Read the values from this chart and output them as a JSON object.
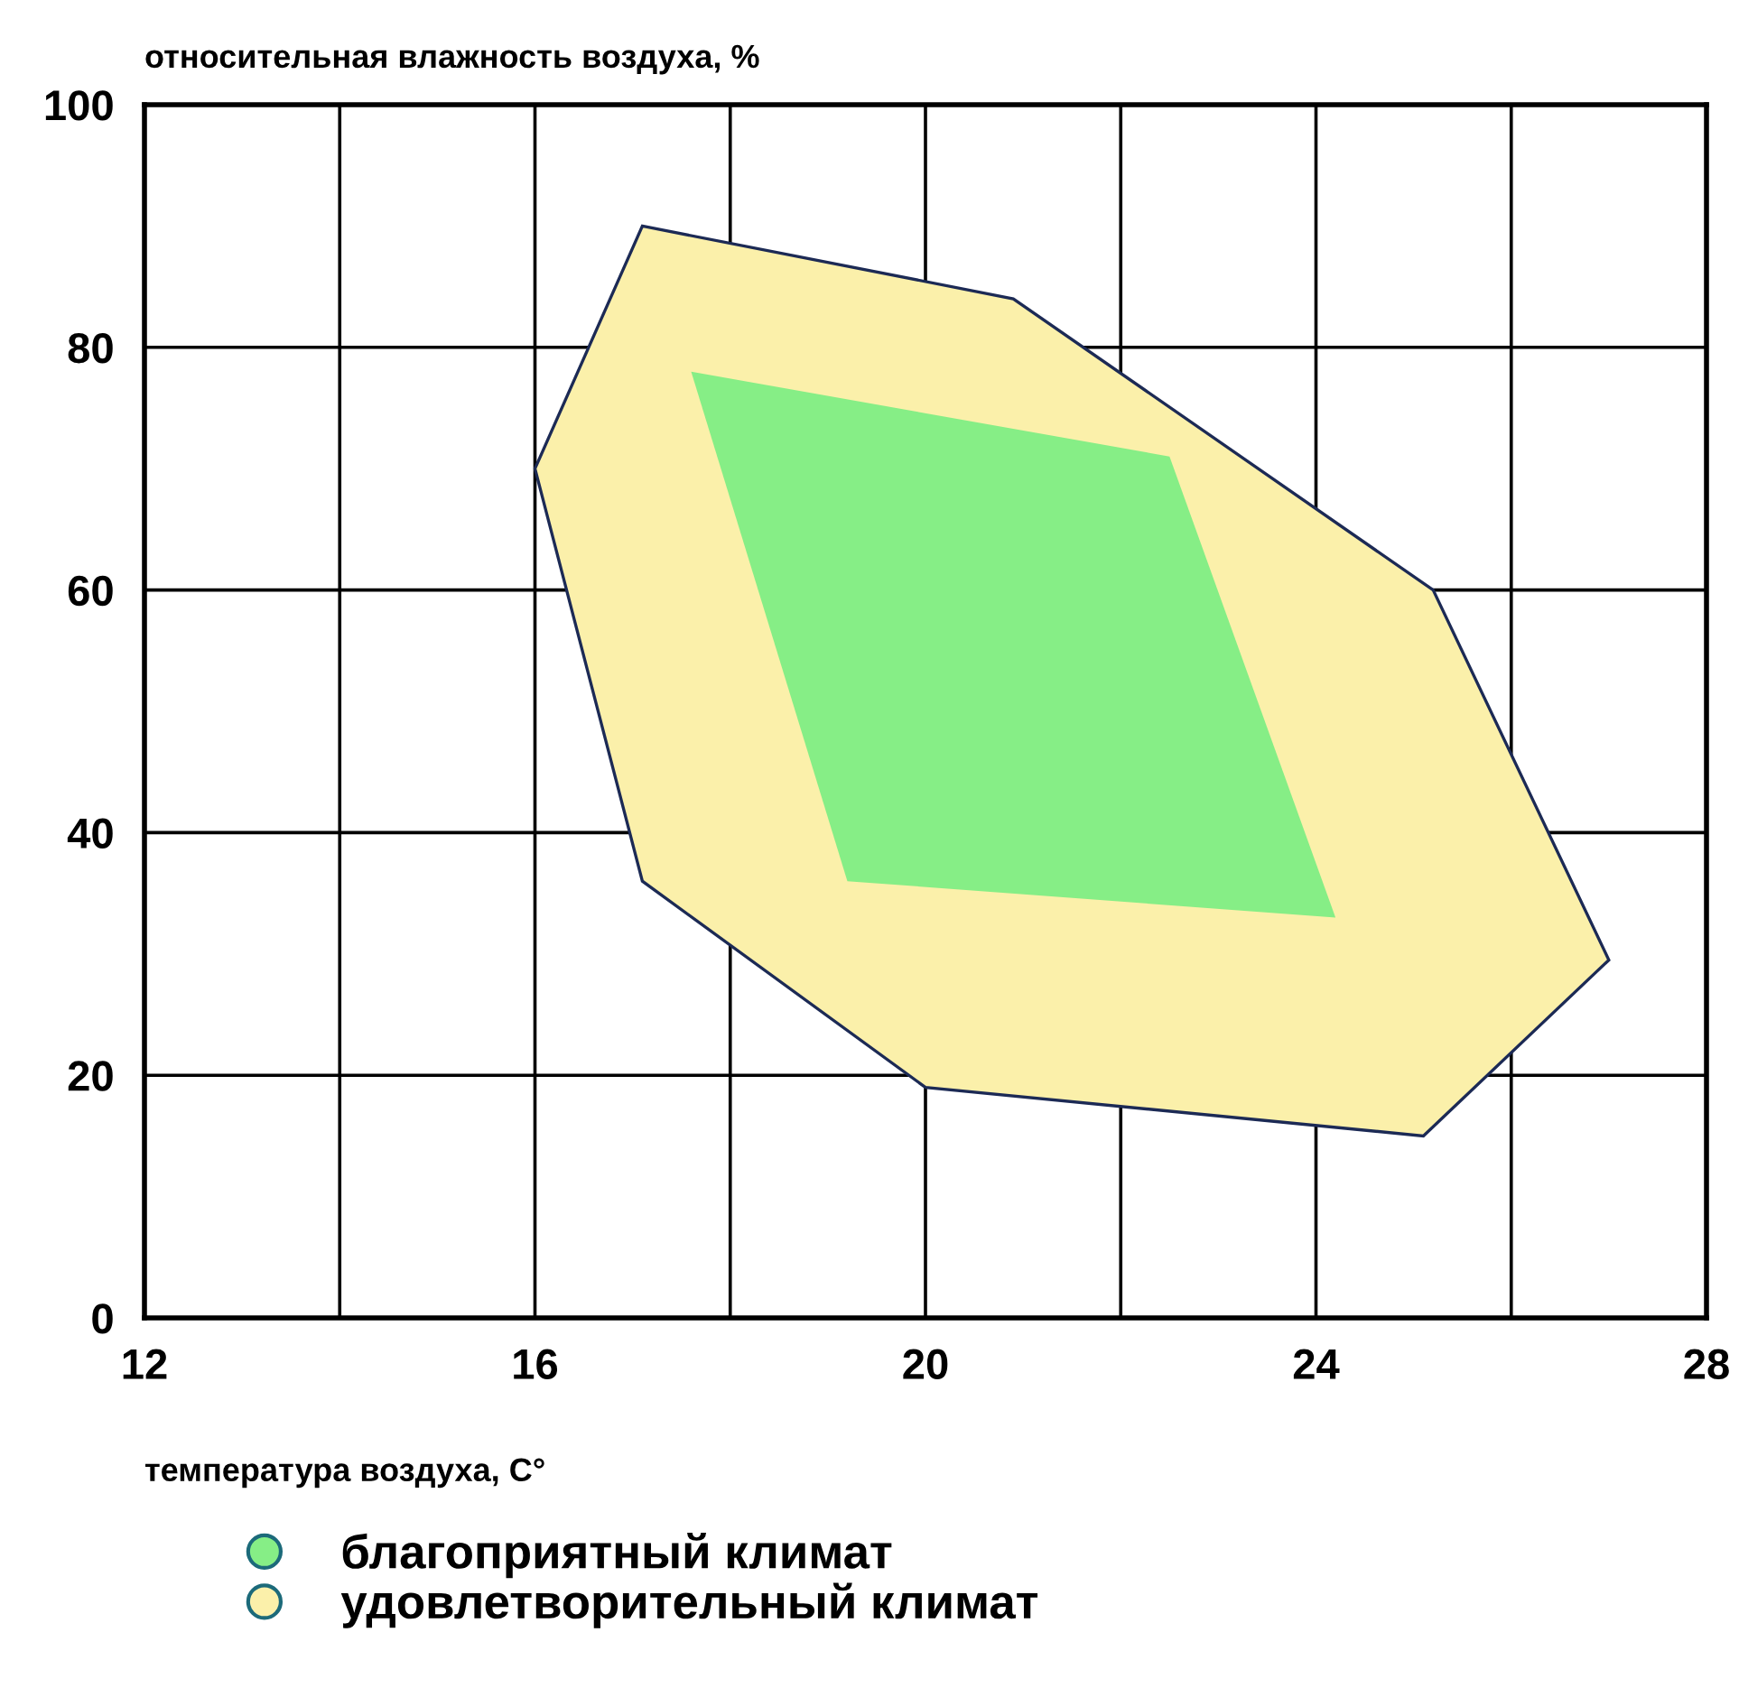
{
  "chart_data": {
    "type": "area",
    "ylabel": "относительная влажность воздуха, %",
    "xlabel": "температура воздуха, C°",
    "xlim": [
      12,
      28
    ],
    "xticks": [
      12,
      {
        "value": 14,
        "label": null
      },
      16,
      {
        "value": 18,
        "label": null
      },
      20,
      {
        "value": 22,
        "label": null
      },
      24,
      {
        "value": 26,
        "label": null
      },
      28
    ],
    "ylim": [
      0,
      100
    ],
    "yticks": [
      0,
      20,
      40,
      60,
      80,
      100
    ],
    "grid": true,
    "legend": "bottom left",
    "series": [
      {
        "name": "благоприятный климат",
        "color": "#86ee86",
        "x": [
          17.6,
          22.5,
          24.2,
          19.2
        ],
        "values": [
          78,
          71,
          33,
          36
        ]
      },
      {
        "name": "удовлетворительный климат",
        "color": "#fbf0aa",
        "x": [
          17.1,
          20.9,
          25.2,
          27,
          25.1,
          20,
          17.1,
          16
        ],
        "values": [
          90,
          84,
          60,
          29.5,
          15,
          19,
          36,
          70
        ]
      }
    ]
  }
}
